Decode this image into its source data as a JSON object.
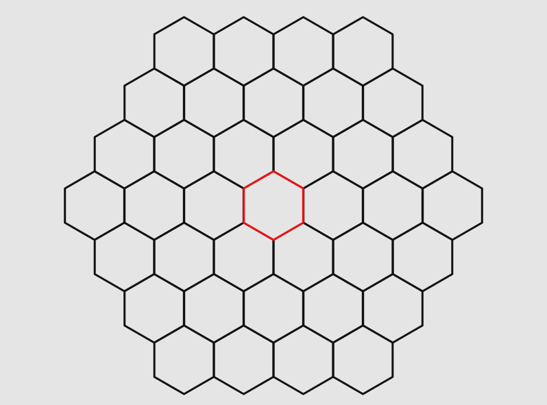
{
  "board": {
    "shape": "hexagonal",
    "radius": 3,
    "cell_count": 37,
    "orientation": "pointy-top",
    "background_color": "#e5e5e5",
    "cell_fill": "#e5e5e5",
    "cell_stroke": "#111111",
    "highlighted_cell": {
      "q": 0,
      "r": 0
    },
    "highlight_stroke": "#ee1111"
  }
}
